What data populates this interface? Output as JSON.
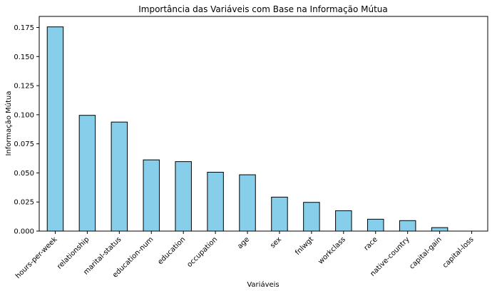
{
  "chart_data": {
    "type": "bar",
    "title": "Importância das Variáveis com Base na Informação Mútua",
    "xlabel": "Variáveis",
    "ylabel": "Informação Mútua",
    "categories": [
      "hours-per-week",
      "relationship",
      "marital-status",
      "education-num",
      "education",
      "occupation",
      "age",
      "sex",
      "fnlwgt",
      "workclass",
      "race",
      "native-country",
      "capital-gain",
      "capital-loss"
    ],
    "values": [
      0.1755,
      0.0995,
      0.0937,
      0.0612,
      0.0597,
      0.0506,
      0.0484,
      0.0292,
      0.0247,
      0.0175,
      0.0102,
      0.009,
      0.003,
      0.0
    ],
    "ylim": [
      0,
      0.1845
    ],
    "yticks": [
      "0.000",
      "0.025",
      "0.050",
      "0.075",
      "0.100",
      "0.125",
      "0.150",
      "0.175"
    ],
    "grid": false,
    "colors": {
      "bar_fill": "#87CEEB",
      "bar_edge": "#000000"
    }
  }
}
